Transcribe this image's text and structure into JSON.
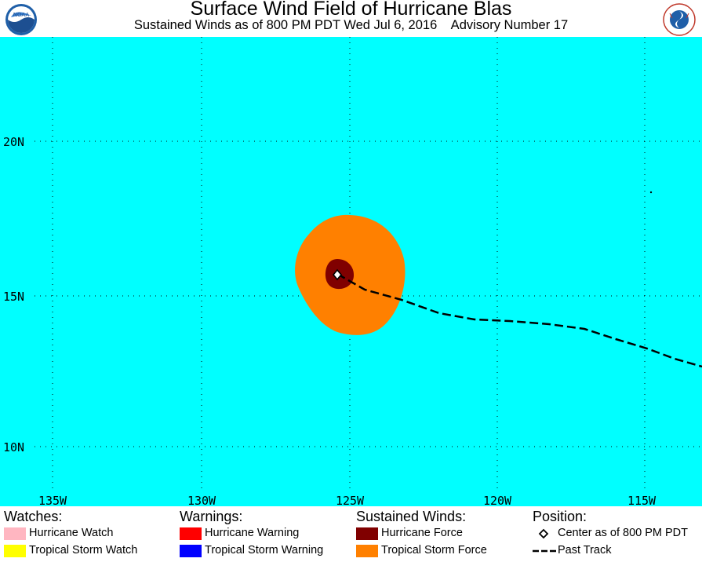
{
  "header": {
    "title": "Surface Wind Field of Hurricane Blas",
    "subtitle": "Sustained Winds as of 800 PM PDT Wed Jul 6, 2016    Advisory Number 17",
    "logo_left_text": "NOAA",
    "logo_right_text": "NATIONAL WEATHER SERVICE"
  },
  "map": {
    "ocean_color": "#00ffff",
    "tropical_storm_force_color": "#ff8000",
    "hurricane_force_color": "#800000",
    "lat_labels": [
      "20N",
      "15N",
      "10N"
    ],
    "lon_labels": [
      "135W",
      "130W",
      "125W",
      "120W",
      "115W"
    ],
    "grid": "dotted",
    "center": {
      "lat": 15.7,
      "lon": -125.3,
      "marker": "diamond"
    }
  },
  "legend": {
    "watches": {
      "heading": "Watches:",
      "items": [
        {
          "label": "Hurricane Watch",
          "color": "#ffb6c1"
        },
        {
          "label": "Tropical Storm Watch",
          "color": "#ffff00"
        }
      ]
    },
    "warnings": {
      "heading": "Warnings:",
      "items": [
        {
          "label": "Hurricane Warning",
          "color": "#ff0000"
        },
        {
          "label": "Tropical Storm Warning",
          "color": "#0000ff"
        }
      ]
    },
    "winds": {
      "heading": "Sustained Winds:",
      "items": [
        {
          "label": "Hurricane Force",
          "color": "#800000"
        },
        {
          "label": "Tropical Storm Force",
          "color": "#ff8000"
        }
      ]
    },
    "position": {
      "heading": "Position:",
      "items": [
        {
          "label": "Center as of 800 PM PDT",
          "symbol": "diamond-icon"
        },
        {
          "label": "Past Track",
          "symbol": "dashed-line-icon"
        }
      ]
    }
  }
}
